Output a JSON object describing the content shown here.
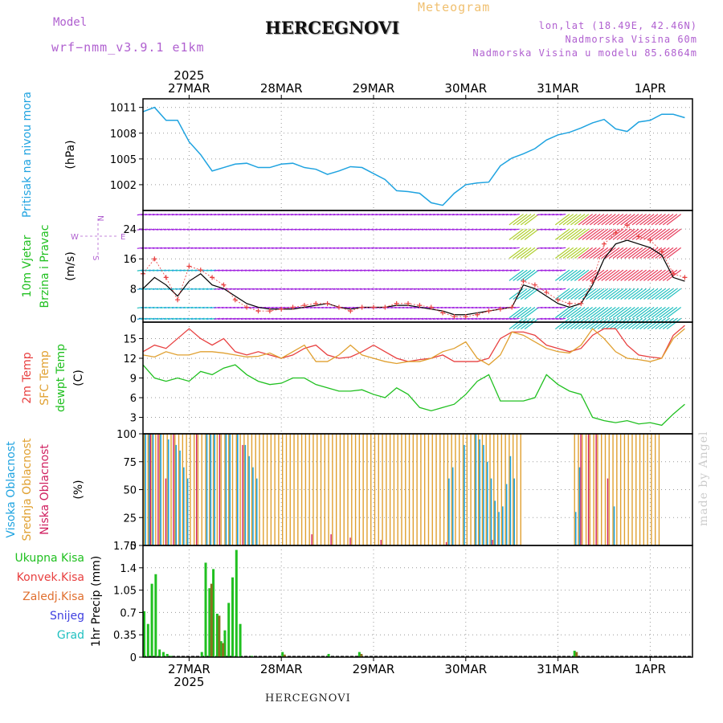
{
  "header": {
    "model_label": "Model",
    "model_name": "wrf−nmm_v3.9.1 e1km",
    "title": "HERCEGNOVI",
    "meteogram_label": "Meteogram",
    "lonlat": "lon,lat (18.49E, 42.46N)",
    "elevation": "Nadmorska Visina 60m",
    "elevation_model": "Nadmorska Visina u modelu 85.6864m"
  },
  "footer": {
    "station": "HERCEGNOVI",
    "credit": "made by Angel"
  },
  "colors": {
    "pressure": "#1fa3e0",
    "temp2m": "#e84040",
    "sfc_temp": "#e0a030",
    "dewpoint": "#20c020",
    "precip_total": "#20c020",
    "convective": "#e84040",
    "frozen": "#e07030",
    "snow": "#4040e0",
    "graupel": "#20c0c0",
    "high_cloud": "#1fa3e0",
    "mid_cloud": "#e0a030",
    "low_cloud": "#d02060",
    "wind_label": "#20c020",
    "wind_speed": "#000000",
    "wind_gust": "#e84040",
    "wind_dir_label": "#b060d0"
  },
  "chart_data": [
    {
      "id": "pressure",
      "type": "line",
      "ylabel_lines": [
        "Pritisak na nivou mora",
        "(hPa)"
      ],
      "yticks": [
        "1011",
        "1008",
        "1005",
        "1002"
      ],
      "ylim": [
        999,
        1012
      ],
      "x": [
        0,
        3,
        6,
        9,
        12,
        15,
        18,
        21,
        24,
        27,
        30,
        33,
        36,
        39,
        42,
        45,
        48,
        51,
        54,
        57,
        60,
        63,
        66,
        69,
        72,
        75,
        78,
        81,
        84,
        87,
        90,
        93,
        96,
        99,
        102,
        105,
        108,
        111,
        114,
        117,
        120,
        123,
        126,
        129,
        132,
        135,
        138,
        141
      ],
      "values": [
        1010.5,
        1011,
        1009.5,
        1009.5,
        1007,
        1005.5,
        1003.6,
        1004,
        1004.4,
        1004.5,
        1004,
        1004,
        1004.4,
        1004.5,
        1004,
        1003.8,
        1003.2,
        1003.6,
        1004.1,
        1004,
        1003.3,
        1002.6,
        1001.3,
        1001.2,
        1001,
        999.9,
        999.6,
        1001,
        1002,
        1002.2,
        1002.3,
        1004.2,
        1005.1,
        1005.6,
        1006.2,
        1007.2,
        1007.8,
        1008.1,
        1008.6,
        1009.2,
        1009.6,
        1008.5,
        1008.2,
        1009.3,
        1009.5,
        1010.2,
        1010.2,
        1009.8
      ]
    },
    {
      "id": "wind",
      "type": "line",
      "ylabel_lines": [
        "10m Vjetar",
        "Brzina i Pravac",
        "(m/s)"
      ],
      "direction_legend": {
        "n": "N",
        "s": "S",
        "w": "W",
        "e": "E"
      },
      "yticks": [
        "24",
        "16",
        "8",
        "0"
      ],
      "ylim": [
        -1,
        29
      ],
      "x": [
        0,
        3,
        6,
        9,
        12,
        15,
        18,
        21,
        24,
        27,
        30,
        33,
        36,
        39,
        42,
        45,
        48,
        51,
        54,
        57,
        60,
        63,
        66,
        69,
        72,
        75,
        78,
        81,
        84,
        87,
        90,
        93,
        96,
        99,
        102,
        105,
        108,
        111,
        114,
        117,
        120,
        123,
        126,
        129,
        132,
        135,
        138,
        141
      ],
      "series": [
        {
          "id": "speed",
          "values": [
            8,
            11,
            9,
            6,
            10,
            12,
            9,
            8,
            6,
            4,
            3,
            2.5,
            2.5,
            2.5,
            3,
            3.5,
            4,
            3,
            2.5,
            3,
            3,
            3,
            3.5,
            3.5,
            3,
            2.5,
            2,
            1,
            1,
            1.5,
            2,
            2.5,
            3,
            9,
            8,
            6,
            4,
            3,
            4,
            9,
            16,
            20,
            21,
            20,
            19,
            17,
            11,
            10
          ]
        },
        {
          "id": "gust",
          "values": [
            12,
            16,
            11,
            5,
            14,
            13,
            11,
            9,
            5,
            3,
            2,
            2,
            2.5,
            3,
            3.5,
            4,
            4,
            3,
            2,
            3,
            3,
            3,
            4,
            4,
            3.5,
            3,
            1.5,
            0.5,
            0.5,
            1,
            2,
            2.5,
            3,
            10,
            9,
            7,
            5,
            4,
            4,
            10,
            20,
            23,
            25,
            22,
            21,
            18,
            12,
            11
          ]
        }
      ],
      "arrow_levels": [
        0,
        3,
        8,
        13,
        19,
        24,
        28
      ]
    },
    {
      "id": "temperature",
      "type": "line",
      "ylabel_lines": [
        "2m Temp",
        "SFC Temp",
        "dewpt Temp",
        "(C)"
      ],
      "yticks": [
        "15",
        "12",
        "9",
        "6",
        "3"
      ],
      "ylim": [
        0.5,
        17.5
      ],
      "x": [
        0,
        3,
        6,
        9,
        12,
        15,
        18,
        21,
        24,
        27,
        30,
        33,
        36,
        39,
        42,
        45,
        48,
        51,
        54,
        57,
        60,
        63,
        66,
        69,
        72,
        75,
        78,
        81,
        84,
        87,
        90,
        93,
        96,
        99,
        102,
        105,
        108,
        111,
        114,
        117,
        120,
        123,
        126,
        129,
        132,
        135,
        138,
        141
      ],
      "series": [
        {
          "id": "t2m",
          "values": [
            13,
            14,
            13.5,
            15,
            16.5,
            15,
            14,
            15,
            13,
            12.5,
            13,
            12.5,
            12,
            12.5,
            13.5,
            14,
            12.5,
            12,
            12.2,
            13,
            14,
            13,
            12,
            11.5,
            11.8,
            12,
            12.5,
            11.5,
            11.5,
            11.5,
            12,
            15,
            16,
            16,
            15.5,
            14,
            13.5,
            13,
            13.5,
            15.5,
            16.5,
            16.5,
            14,
            12.5,
            12.2,
            12,
            15.5,
            17
          ]
        },
        {
          "id": "sfc",
          "values": [
            12.5,
            12.2,
            13,
            12.5,
            12.5,
            13,
            13,
            12.8,
            12.5,
            12.2,
            12.3,
            12.8,
            12,
            13,
            14,
            11.5,
            11.5,
            12.5,
            14,
            12.5,
            12,
            11.5,
            11.2,
            11.5,
            11.5,
            12,
            13,
            13.5,
            14.5,
            12,
            11,
            12.5,
            16,
            15.5,
            14.5,
            13.5,
            13,
            12.8,
            14,
            16.5,
            15,
            13,
            12,
            11.8,
            11.5,
            12,
            15,
            16.5
          ]
        },
        {
          "id": "dewpt",
          "values": [
            11,
            9,
            8.5,
            9,
            8.5,
            10,
            9.5,
            10.5,
            11,
            9.5,
            8.5,
            8,
            8.2,
            9,
            9,
            8,
            7.5,
            7,
            7,
            7.2,
            6.5,
            6,
            7.5,
            6.5,
            4.5,
            4,
            4.5,
            5,
            6.5,
            8.5,
            9.5,
            5.5,
            5.5,
            5.5,
            6,
            9.5,
            8,
            7,
            6.5,
            3,
            2.5,
            2.2,
            2.5,
            2,
            2.2,
            1.8,
            3.5,
            5
          ]
        }
      ]
    },
    {
      "id": "cloud",
      "type": "bar",
      "ylabel_lines": [
        "Visoka Oblacnost",
        "Srednja Oblacnost",
        "Niska Oblacnost",
        "(%)"
      ],
      "yticks": [
        "100",
        "75",
        "50",
        "25",
        "0"
      ],
      "ylim": [
        0,
        100
      ],
      "series": [
        {
          "id": "mid",
          "hour_ranges": [
            [
              0,
              98
            ],
            [
              112,
              134
            ]
          ],
          "value": 100
        },
        {
          "id": "high",
          "hours": [
            0,
            1,
            2,
            4,
            6,
            8,
            9,
            10,
            11,
            16,
            17,
            18,
            21,
            22,
            24,
            26,
            27,
            28,
            29,
            79,
            80,
            83,
            86,
            87,
            88,
            89,
            90,
            91,
            92,
            93,
            94,
            95,
            96,
            112,
            113,
            122
          ],
          "values": [
            100,
            100,
            100,
            100,
            95,
            90,
            85,
            70,
            60,
            100,
            100,
            100,
            100,
            100,
            100,
            90,
            80,
            70,
            60,
            60,
            70,
            90,
            100,
            95,
            90,
            75,
            60,
            40,
            30,
            35,
            55,
            80,
            60,
            30,
            70,
            35
          ]
        },
        {
          "id": "low",
          "hours": [
            1,
            3,
            5,
            7,
            13,
            19,
            25,
            43,
            48,
            53,
            61,
            78,
            90,
            113,
            115,
            117,
            120
          ],
          "values": [
            100,
            100,
            60,
            100,
            100,
            100,
            90,
            10,
            10,
            7,
            5,
            3,
            5,
            100,
            100,
            100,
            60
          ]
        }
      ]
    },
    {
      "id": "precip",
      "type": "bar",
      "ylabel_lines": [
        "1hr Precip (mm)"
      ],
      "legend": [
        "Ukupna Kisa",
        "Konvek.Kisa",
        "Zaledj.Kisa",
        "Snijeg",
        "Grad"
      ],
      "yticks": [
        "1.75",
        "1.4",
        "1.05",
        "0.7",
        "0.35",
        "0"
      ],
      "ylim": [
        0,
        1.75
      ],
      "series": [
        {
          "id": "total",
          "hours": [
            0,
            1,
            2,
            3,
            4,
            5,
            6,
            7,
            15,
            16,
            17,
            18,
            19,
            20,
            21,
            22,
            23,
            24,
            25,
            28,
            36,
            48,
            56,
            112
          ],
          "values": [
            0.72,
            0.52,
            1.15,
            1.3,
            0.12,
            0.08,
            0.05,
            0.02,
            0.08,
            1.48,
            1.08,
            1.38,
            0.68,
            0.25,
            0.42,
            0.85,
            1.25,
            1.68,
            0.52,
            0.02,
            0.08,
            0.05,
            0.08,
            0.1
          ]
        },
        {
          "id": "convective",
          "hours": [
            17,
            19,
            20,
            36,
            56,
            112
          ],
          "values": [
            1.15,
            0.65,
            0.22,
            0.04,
            0.05,
            0.08
          ]
        }
      ]
    }
  ],
  "time_axis": {
    "year": "2025",
    "day_labels": [
      "27MAR",
      "28MAR",
      "29MAR",
      "30MAR",
      "31MAR",
      "1APR"
    ],
    "day_hours": [
      12,
      36,
      60,
      84,
      108,
      132
    ]
  }
}
